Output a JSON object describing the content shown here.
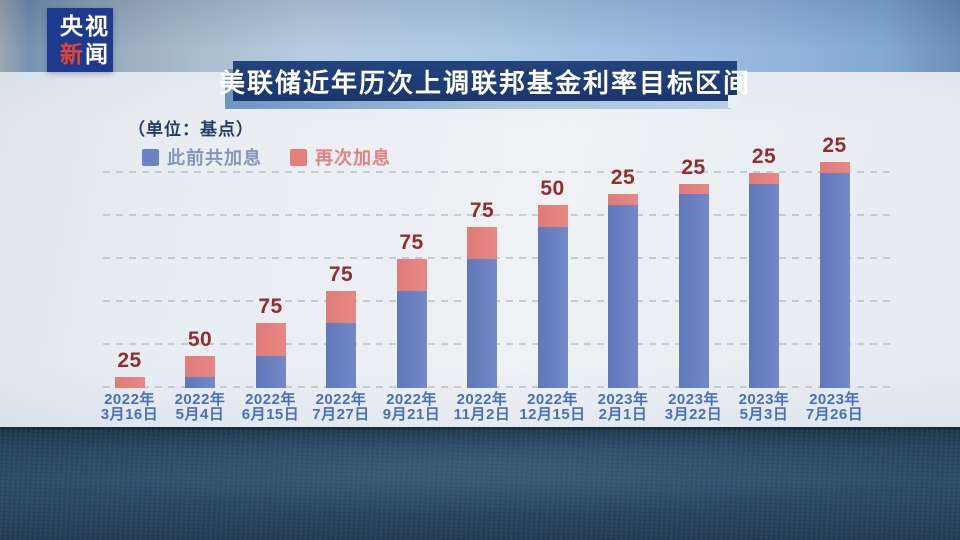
{
  "logo": {
    "line1": "央视",
    "line2_red": "新",
    "line2_white": "闻"
  },
  "title": "美联储近年历次上调联邦基金利率目标区间",
  "unit_label": "（单位：基点）",
  "legend": {
    "previous": {
      "label": "此前共加息",
      "color": "#6a83c3"
    },
    "new": {
      "label": "再次加息",
      "color": "#e2807d"
    }
  },
  "chart_data": {
    "type": "bar",
    "stacked": true,
    "title": "美联储近年历次上调联邦基金利率目标区间",
    "unit": "基点",
    "categories": [
      "2022年3月16日",
      "2022年5月4日",
      "2022年6月15日",
      "2022年7月27日",
      "2022年9月21日",
      "2022年11月2日",
      "2022年12月15日",
      "2023年2月1日",
      "2023年3月22日",
      "2023年5月3日",
      "2023年7月26日"
    ],
    "series": [
      {
        "name": "此前共加息",
        "color": "#6a83c3",
        "values": [
          0,
          25,
          75,
          150,
          225,
          300,
          375,
          425,
          450,
          475,
          500
        ]
      },
      {
        "name": "再次加息",
        "color": "#e2807d",
        "values": [
          25,
          50,
          75,
          75,
          75,
          75,
          50,
          25,
          25,
          25,
          25
        ]
      }
    ],
    "bar_labels": [
      25,
      50,
      75,
      75,
      75,
      75,
      50,
      25,
      25,
      25,
      25
    ],
    "totals": [
      25,
      75,
      150,
      225,
      300,
      375,
      425,
      450,
      475,
      500,
      525
    ],
    "ylim": [
      0,
      525
    ],
    "gridline_interval": 100,
    "grid": "dashed-horizontal",
    "legend_position": "top-left",
    "value_label_color": "#932d30",
    "axis_label_color": "#4a70b4"
  }
}
